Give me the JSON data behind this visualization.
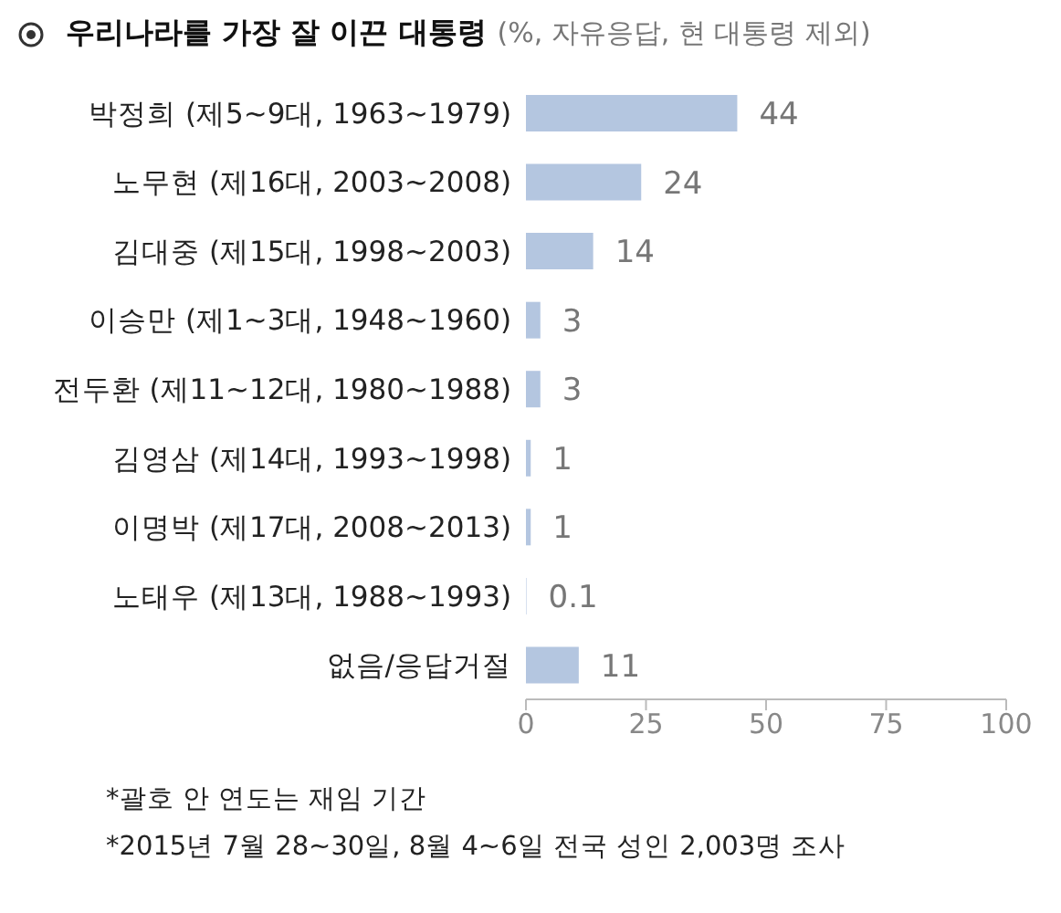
{
  "chart_data": {
    "type": "bar",
    "orientation": "horizontal",
    "title": "우리나라를 가장 잘 이끈 대통령",
    "subtitle": "(%, 자유응답, 현 대통령 제외)",
    "categories": [
      "박정희 (제5~9대, 1963~1979)",
      "노무현 (제16대, 2003~2008)",
      "김대중 (제15대, 1998~2003)",
      "이승만 (제1~3대, 1948~1960)",
      "전두환 (제11~12대, 1980~1988)",
      "김영삼 (제14대, 1993~1998)",
      "이명박 (제17대, 2008~2013)",
      "노태우 (제13대, 1988~1993)",
      "없음/응답거절"
    ],
    "values": [
      44,
      24,
      14,
      3,
      3,
      1,
      1,
      0.1,
      11
    ],
    "color": "#b4c6e0",
    "xlim": [
      0,
      100
    ],
    "xticks": [
      0,
      25,
      50,
      75,
      100
    ],
    "grid": false,
    "legend": false,
    "data_labels": true,
    "annotations": [
      "*괄호 안 연도는 재임 기간",
      "*2015년 7월 28~30일, 8월 4~6일 전국 성인 2,003명 조사"
    ]
  }
}
